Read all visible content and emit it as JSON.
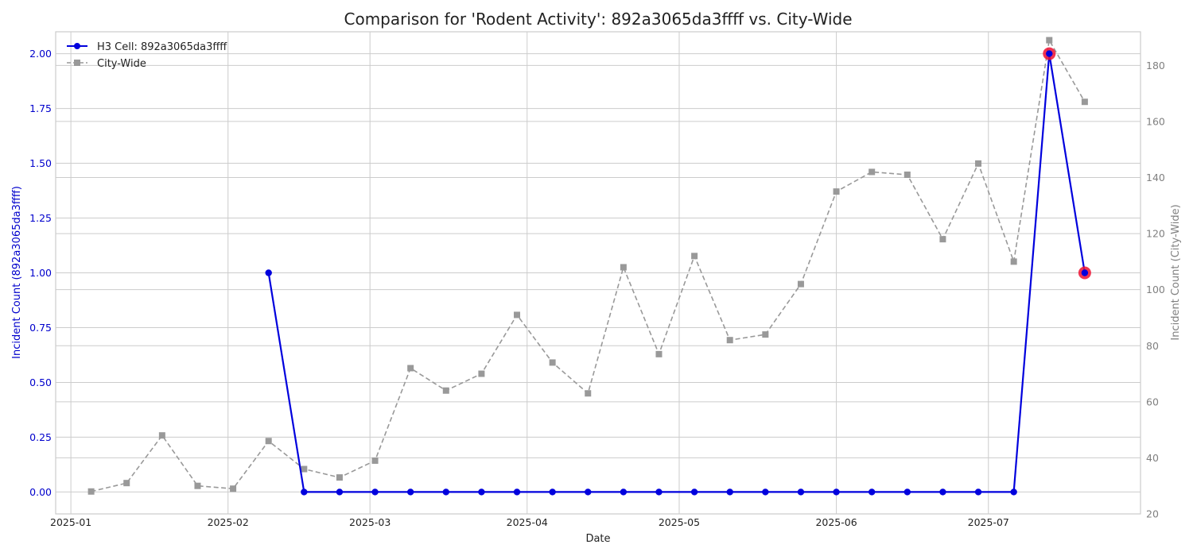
{
  "chart_data": {
    "type": "line",
    "title": "Comparison for 'Rodent Activity': 892a3065da3ffff vs. City-Wide",
    "xlabel": "Date",
    "ylabel_left": "Incident Count (892a3065da3ffff)",
    "ylabel_right": "Incident Count (City-Wide)",
    "x_ticks": [
      "2025-01",
      "2025-02",
      "2025-03",
      "2025-04",
      "2025-05",
      "2025-06",
      "2025-07"
    ],
    "x_tick_dates": [
      "2025-01-01",
      "2025-02-01",
      "2025-03-01",
      "2025-04-01",
      "2025-05-01",
      "2025-06-01",
      "2025-07-01"
    ],
    "xlim": [
      "2024-12-29",
      "2025-07-31"
    ],
    "ylim_left": [
      -0.1,
      2.1
    ],
    "yticks_left": [
      "0.00",
      "0.25",
      "0.50",
      "0.75",
      "1.00",
      "1.25",
      "1.50",
      "1.75",
      "2.00"
    ],
    "ylim_right": [
      20,
      192
    ],
    "yticks_right": [
      "20",
      "40",
      "60",
      "80",
      "100",
      "120",
      "140",
      "160",
      "180"
    ],
    "grid": true,
    "legend_position": "top-left",
    "colors": {
      "cell": "#0000dd",
      "city": "#999999",
      "highlight": "#ee1133",
      "left_axis_text": "#0000cc",
      "right_axis_text": "#808080"
    },
    "series": [
      {
        "name": "H3 Cell: 892a3065da3ffff",
        "axis": "left",
        "x": [
          "2025-02-09",
          "2025-02-16",
          "2025-02-23",
          "2025-03-02",
          "2025-03-09",
          "2025-03-16",
          "2025-03-23",
          "2025-03-30",
          "2025-04-06",
          "2025-04-13",
          "2025-04-20",
          "2025-04-27",
          "2025-05-04",
          "2025-05-11",
          "2025-05-18",
          "2025-05-25",
          "2025-06-01",
          "2025-06-08",
          "2025-06-15",
          "2025-06-22",
          "2025-06-29",
          "2025-07-06",
          "2025-07-13",
          "2025-07-20"
        ],
        "values": [
          1,
          0,
          0,
          0,
          0,
          0,
          0,
          0,
          0,
          0,
          0,
          0,
          0,
          0,
          0,
          0,
          0,
          0,
          0,
          0,
          0,
          0,
          2,
          1
        ],
        "highlighted_points": [
          "2025-07-13",
          "2025-07-20"
        ]
      },
      {
        "name": "City-Wide",
        "axis": "right",
        "x": [
          "2025-01-05",
          "2025-01-12",
          "2025-01-19",
          "2025-01-26",
          "2025-02-02",
          "2025-02-09",
          "2025-02-16",
          "2025-02-23",
          "2025-03-02",
          "2025-03-09",
          "2025-03-16",
          "2025-03-23",
          "2025-03-30",
          "2025-04-06",
          "2025-04-13",
          "2025-04-20",
          "2025-04-27",
          "2025-05-04",
          "2025-05-11",
          "2025-05-18",
          "2025-05-25",
          "2025-06-01",
          "2025-06-08",
          "2025-06-15",
          "2025-06-22",
          "2025-06-29",
          "2025-07-06",
          "2025-07-13",
          "2025-07-20"
        ],
        "values": [
          28,
          31,
          48,
          30,
          29,
          46,
          36,
          33,
          39,
          72,
          64,
          70,
          91,
          74,
          63,
          108,
          77,
          112,
          82,
          84,
          102,
          135,
          142,
          141,
          118,
          145,
          110,
          189,
          167
        ]
      }
    ]
  }
}
